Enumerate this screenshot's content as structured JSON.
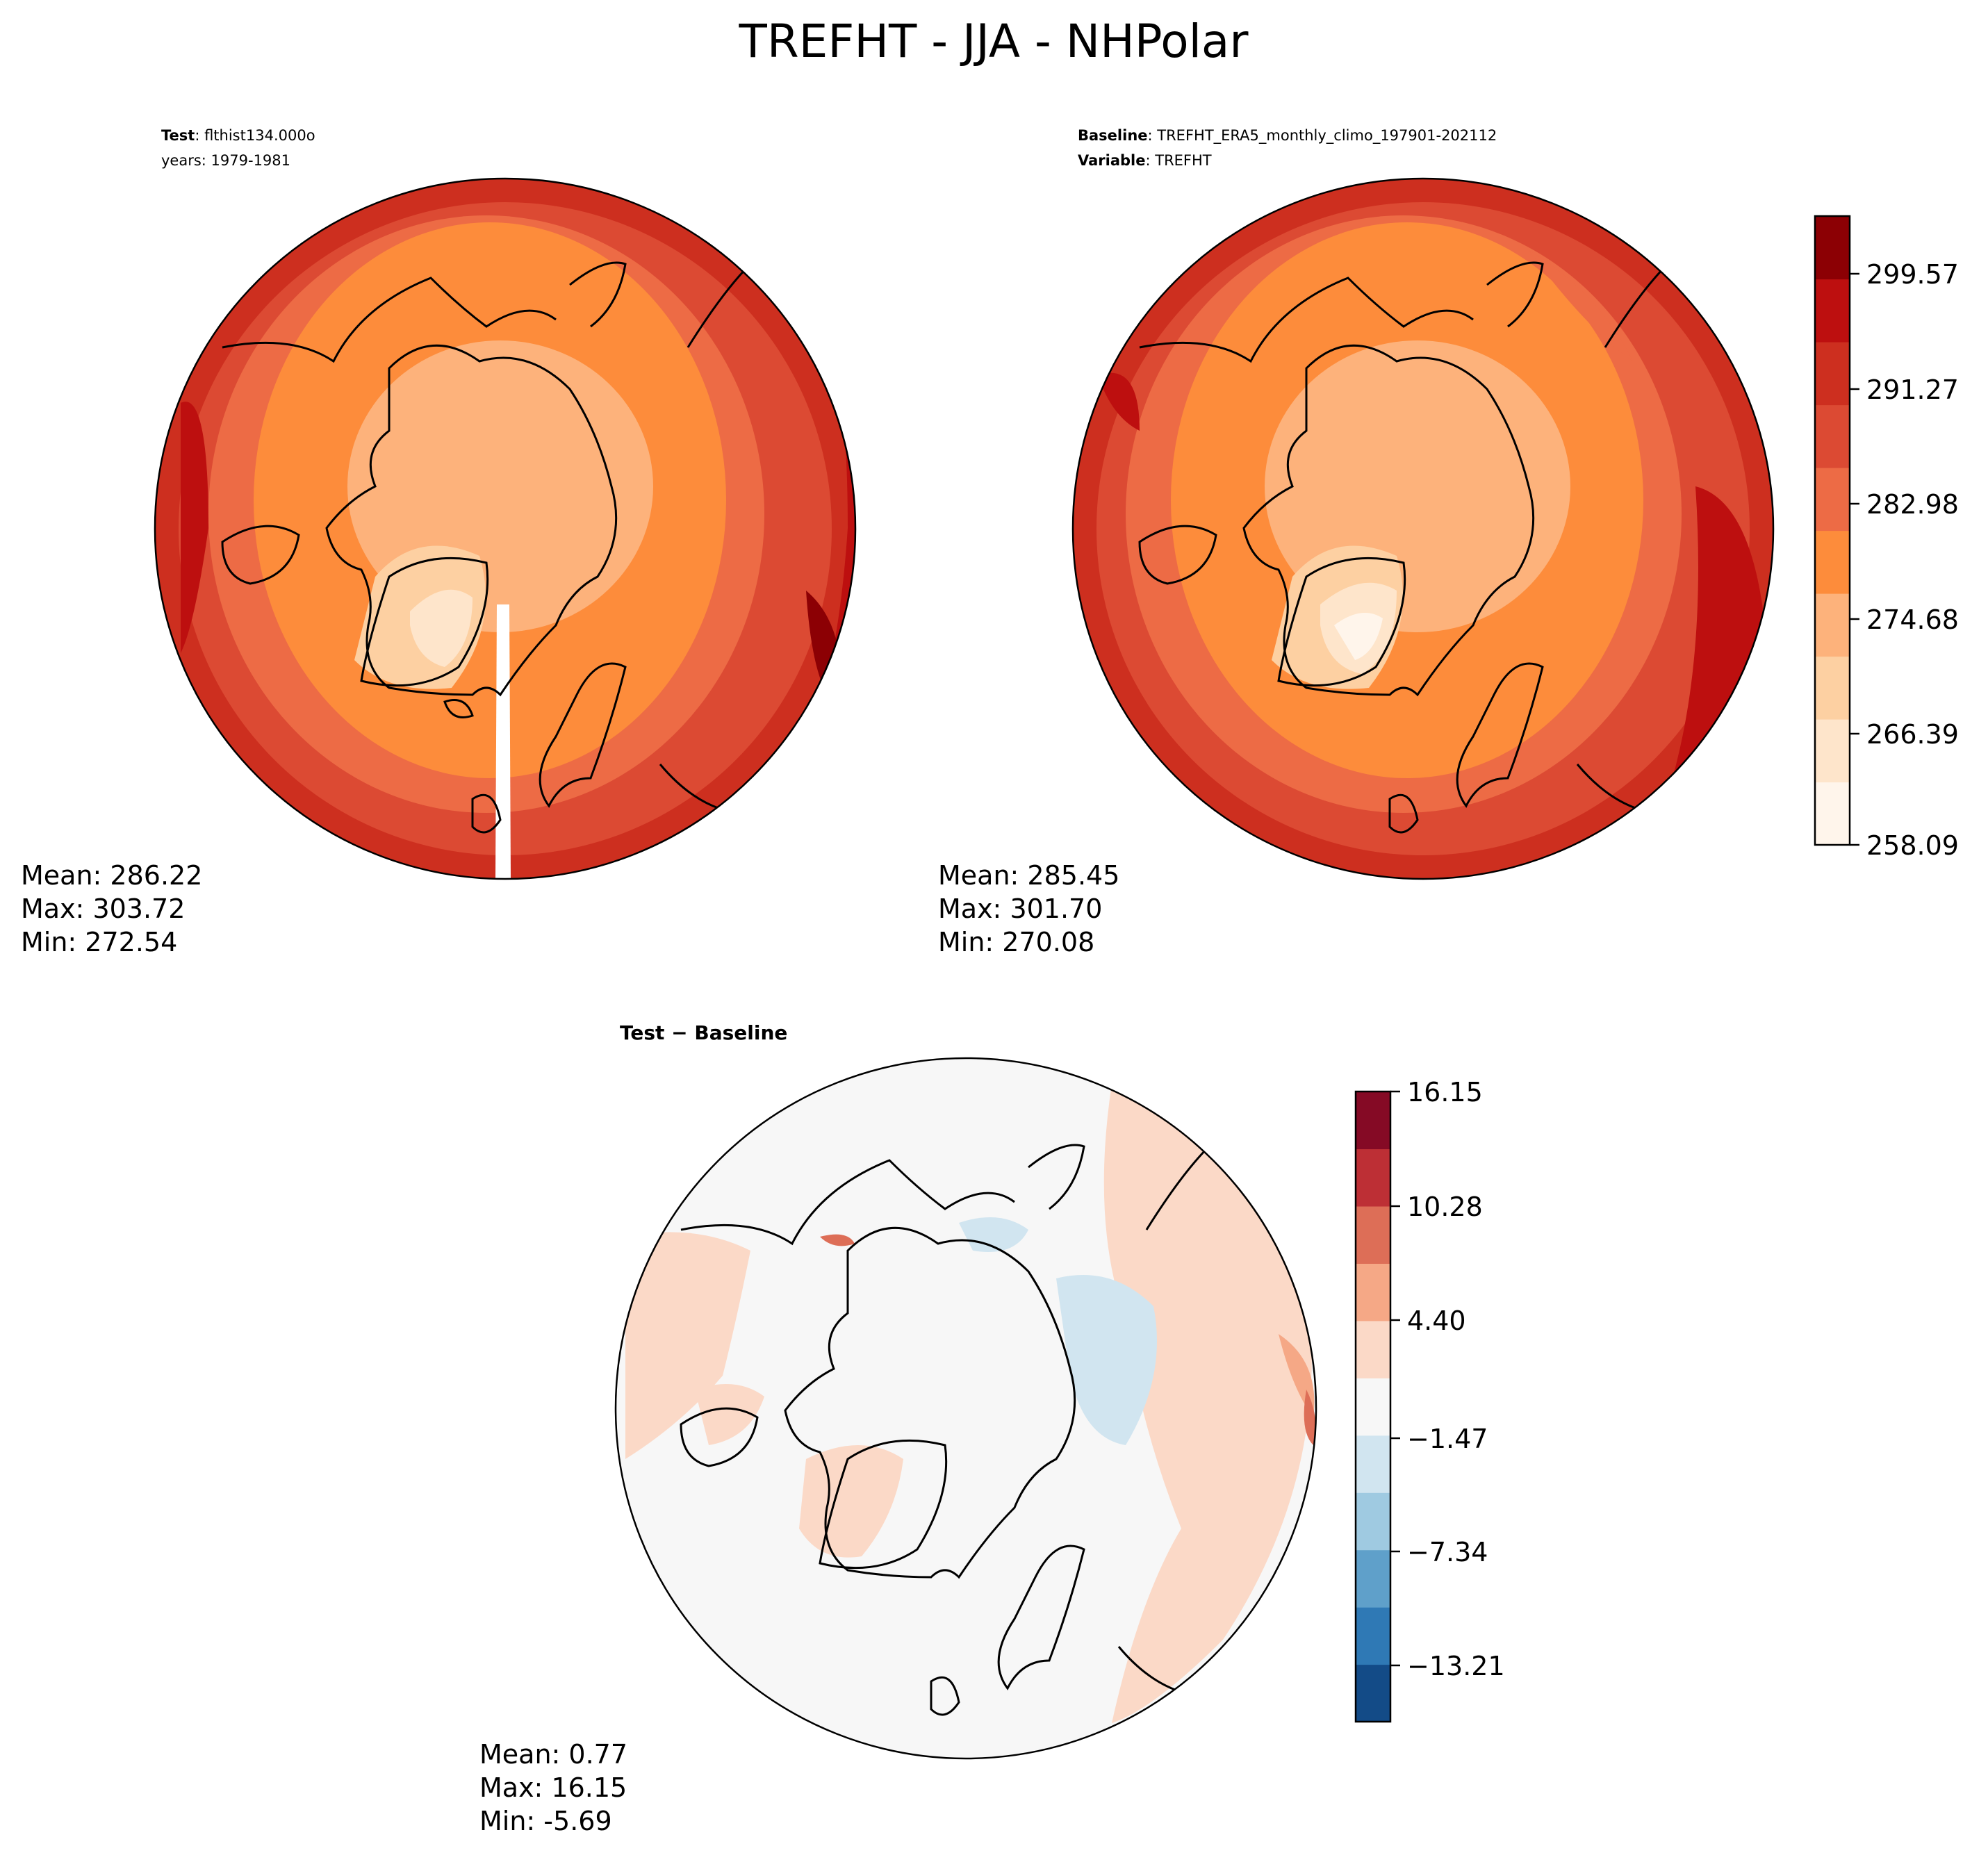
{
  "figure": {
    "title": "TREFHT - JJA - NHPolar"
  },
  "panels": {
    "test": {
      "label_bold": "Test",
      "label_value": ": flthist134.000o",
      "label_line2": "years: 1979-1981",
      "stats": {
        "mean": "Mean: 286.22",
        "max": "Max: 303.72",
        "min": "Min: 272.54"
      }
    },
    "baseline": {
      "label_bold": "Baseline",
      "label_value": ": TREFHT_ERA5_monthly_climo_197901-202112",
      "label_bold2": "Variable",
      "label_value2": ": TREFHT",
      "stats": {
        "mean": "Mean: 285.45",
        "max": "Max: 301.70",
        "min": "Min: 270.08"
      }
    },
    "diff": {
      "label": "Test − Baseline",
      "stats": {
        "mean": "Mean:  0.77",
        "max": "Max: 16.15",
        "min": "Min: -5.69"
      }
    }
  },
  "colorbars": {
    "main": {
      "tick_labels": [
        "299.57",
        "291.27",
        "282.98",
        "274.68",
        "266.39",
        "258.09"
      ],
      "colors": [
        "#fff5eb",
        "#fee5cb",
        "#fdd0a2",
        "#fdb27b",
        "#fd8c3b",
        "#ed6b45",
        "#dc4a33",
        "#cd2f1f",
        "#bd0f0f",
        "#8c0004"
      ]
    },
    "diff": {
      "tick_labels": [
        "16.15",
        "10.28",
        "4.40",
        "−1.47",
        "−7.34",
        "−13.21"
      ],
      "colors": [
        "#134b87",
        "#2f79b5",
        "#5fa0ca",
        "#9fcae1",
        "#d1e5f0",
        "#f7f7f7",
        "#fbd9c7",
        "#f5a886",
        "#dd6e57",
        "#bd2f35",
        "#850a25"
      ]
    }
  },
  "chart_data": [
    {
      "type": "heatmap",
      "panel": "test",
      "projection": "north-polar-stereographic",
      "variable": "TREFHT",
      "season": "JJA",
      "region": "NHPolar",
      "case": "flthist134.000o",
      "years": "1979-1981",
      "mean": 286.22,
      "max": 303.72,
      "min": 272.54,
      "colorbar_range": [
        258.09,
        303.72
      ],
      "colorbar_ticks": [
        258.09,
        266.39,
        274.68,
        282.98,
        291.27,
        299.57
      ]
    },
    {
      "type": "heatmap",
      "panel": "baseline",
      "projection": "north-polar-stereographic",
      "dataset": "TREFHT_ERA5_monthly_climo_197901-202112",
      "variable": "TREFHT",
      "mean": 285.45,
      "max": 301.7,
      "min": 270.08,
      "colorbar_range": [
        258.09,
        303.72
      ],
      "colorbar_ticks": [
        258.09,
        266.39,
        274.68,
        282.98,
        291.27,
        299.57
      ]
    },
    {
      "type": "heatmap",
      "panel": "diff",
      "projection": "north-polar-stereographic",
      "mean": 0.77,
      "max": 16.15,
      "min": -5.69,
      "colorbar_range": [
        -16.15,
        16.15
      ],
      "colorbar_ticks": [
        -13.21,
        -7.34,
        -1.47,
        4.4,
        10.28,
        16.15
      ]
    }
  ]
}
